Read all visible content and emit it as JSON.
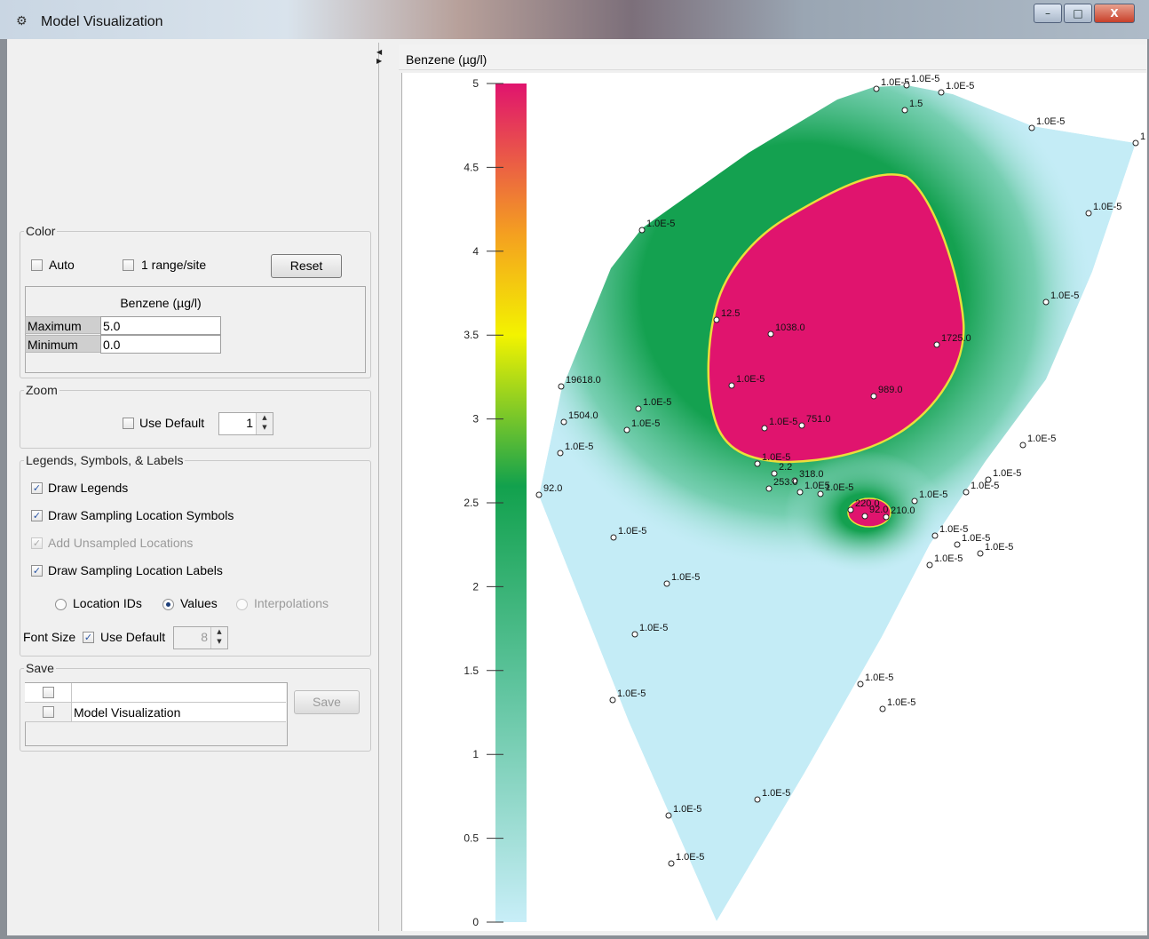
{
  "window": {
    "title": "Model Visualization",
    "icon": "app-icon",
    "minimize": "–",
    "maximize": "□",
    "close": "X"
  },
  "color": {
    "legend": "Color",
    "auto_label": "Auto",
    "range_label": "1 range/site",
    "reset_label": "Reset",
    "table_header": "Benzene (µg/l)",
    "max_label": "Maximum",
    "max_value": "5.0",
    "min_label": "Minimum",
    "min_value": "0.0"
  },
  "zoom": {
    "legend": "Zoom",
    "use_default_label": "Use Default",
    "value": "1"
  },
  "legends": {
    "legend": "Legends, Symbols, & Labels",
    "draw_legends": "Draw Legends",
    "draw_symbols": "Draw Sampling Location Symbols",
    "add_unsampled": "Add Unsampled Locations",
    "draw_labels": "Draw Sampling Location Labels",
    "radio_ids": "Location IDs",
    "radio_values": "Values",
    "radio_interp": "Interpolations",
    "font_size_label": "Font Size",
    "font_default_label": "Use Default",
    "font_size_value": "8"
  },
  "save": {
    "legend": "Save",
    "row1": "",
    "row2": "Model Visualization",
    "save_label": "Save"
  },
  "plot": {
    "header": "Benzene (µg/l)",
    "colors": {
      "high": "#e0146e",
      "mid": "#f2f200",
      "green": "#1ea34e",
      "low": "#c4ecf6"
    }
  },
  "chart_data": {
    "type": "heatmap",
    "title": "Benzene (µg/l)",
    "colorbar": {
      "min": 0,
      "max": 5,
      "ticks": [
        "0",
        "0.5",
        "1",
        "1.5",
        "2",
        "2.5",
        "3",
        "3.5",
        "4",
        "4.5",
        "5"
      ]
    },
    "point_labels": [
      "1.0E-5",
      "1.0E-5",
      "1.0E-5",
      "1.5",
      "1.0E-5",
      "1",
      "1.0E-5",
      "1.0E-5",
      "1.0E-5",
      "12.5",
      "1038.0",
      "1725.0",
      "1.0E-5",
      "989.0",
      "19618.0",
      "1.0E-5",
      "1.0E-5",
      "1.0E-5",
      "751.0",
      "1504.0",
      "1.0E-5",
      "1.0E-5",
      "2.2",
      "318.0",
      "253.0",
      "1.0E5",
      "92.0",
      "1.0E-5",
      "1.0E-5",
      "1.0E-5",
      "220.0",
      "92.0",
      "210.0",
      "1.0E-5",
      "1.0E-5",
      "1.0E-5",
      "1.0E-5",
      "1.0E-5",
      "1.0E-5",
      "1.0E-5",
      "1.0E-5",
      "1.0E-5",
      "1.0E-5",
      "1.0E-5",
      "1.0E-5",
      "1.0E-5",
      "1.0E-5",
      "1.0E-5"
    ]
  }
}
